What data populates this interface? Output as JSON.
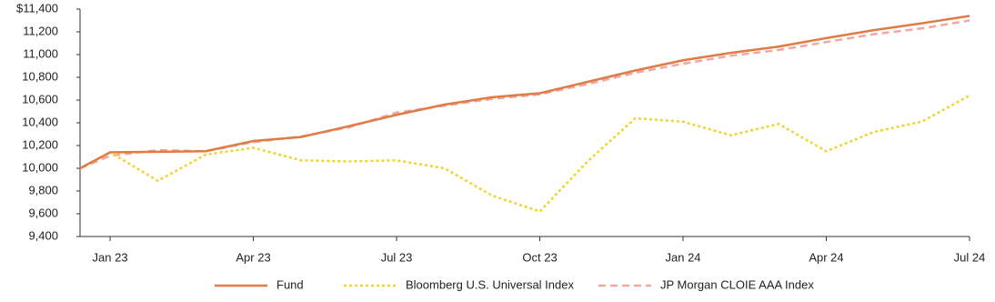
{
  "chart_data": {
    "type": "line",
    "x": [
      0.37,
      1,
      2,
      3,
      4,
      5,
      6,
      7,
      8,
      9,
      10,
      11,
      12,
      13,
      14,
      15,
      16,
      17,
      18,
      19
    ],
    "xlim": [
      0.37,
      19
    ],
    "xticks": [
      {
        "value": 1,
        "label": "Jan 23"
      },
      {
        "value": 4,
        "label": "Apr 23"
      },
      {
        "value": 7,
        "label": "Jul 23"
      },
      {
        "value": 10,
        "label": "Oct 23"
      },
      {
        "value": 13,
        "label": "Jan 24"
      },
      {
        "value": 16,
        "label": "Apr 24"
      },
      {
        "value": 19,
        "label": "Jul 24"
      }
    ],
    "ylim": [
      9400,
      11400
    ],
    "yticks": [
      {
        "value": 9400,
        "label": "9,400"
      },
      {
        "value": 9600,
        "label": "9,600"
      },
      {
        "value": 9800,
        "label": "9,800"
      },
      {
        "value": 10000,
        "label": "10,000"
      },
      {
        "value": 10200,
        "label": "10,200"
      },
      {
        "value": 10400,
        "label": "10,400"
      },
      {
        "value": 10600,
        "label": "10,600"
      },
      {
        "value": 10800,
        "label": "10,800"
      },
      {
        "value": 11000,
        "label": "11,000"
      },
      {
        "value": 11200,
        "label": "11,200"
      },
      {
        "value": 11400,
        "label": "$11,400"
      }
    ],
    "series": [
      {
        "name": "Fund",
        "color": "#e07b45",
        "style": "solid",
        "values": [
          10000,
          10140,
          10145,
          10150,
          10240,
          10275,
          10370,
          10470,
          10560,
          10625,
          10660,
          10760,
          10860,
          10950,
          11015,
          11070,
          11145,
          11215,
          11275,
          11340
        ]
      },
      {
        "name": "Bloomberg U.S. Universal Index",
        "color": "#f2d22e",
        "style": "dotted",
        "values": [
          10000,
          10140,
          9890,
          10120,
          10180,
          10070,
          10060,
          10070,
          10000,
          9760,
          9620,
          10060,
          10440,
          10410,
          10290,
          10390,
          10150,
          10320,
          10410,
          10640
        ]
      },
      {
        "name": "JP Morgan CLOIE AAA Index",
        "color": "#f0a8a0",
        "style": "dashed",
        "values": [
          10000,
          10110,
          10160,
          10150,
          10230,
          10280,
          10360,
          10490,
          10550,
          10610,
          10650,
          10740,
          10840,
          10920,
          10990,
          11040,
          11110,
          11180,
          11230,
          11300
        ]
      }
    ],
    "grid": false,
    "legend": "bottom"
  }
}
